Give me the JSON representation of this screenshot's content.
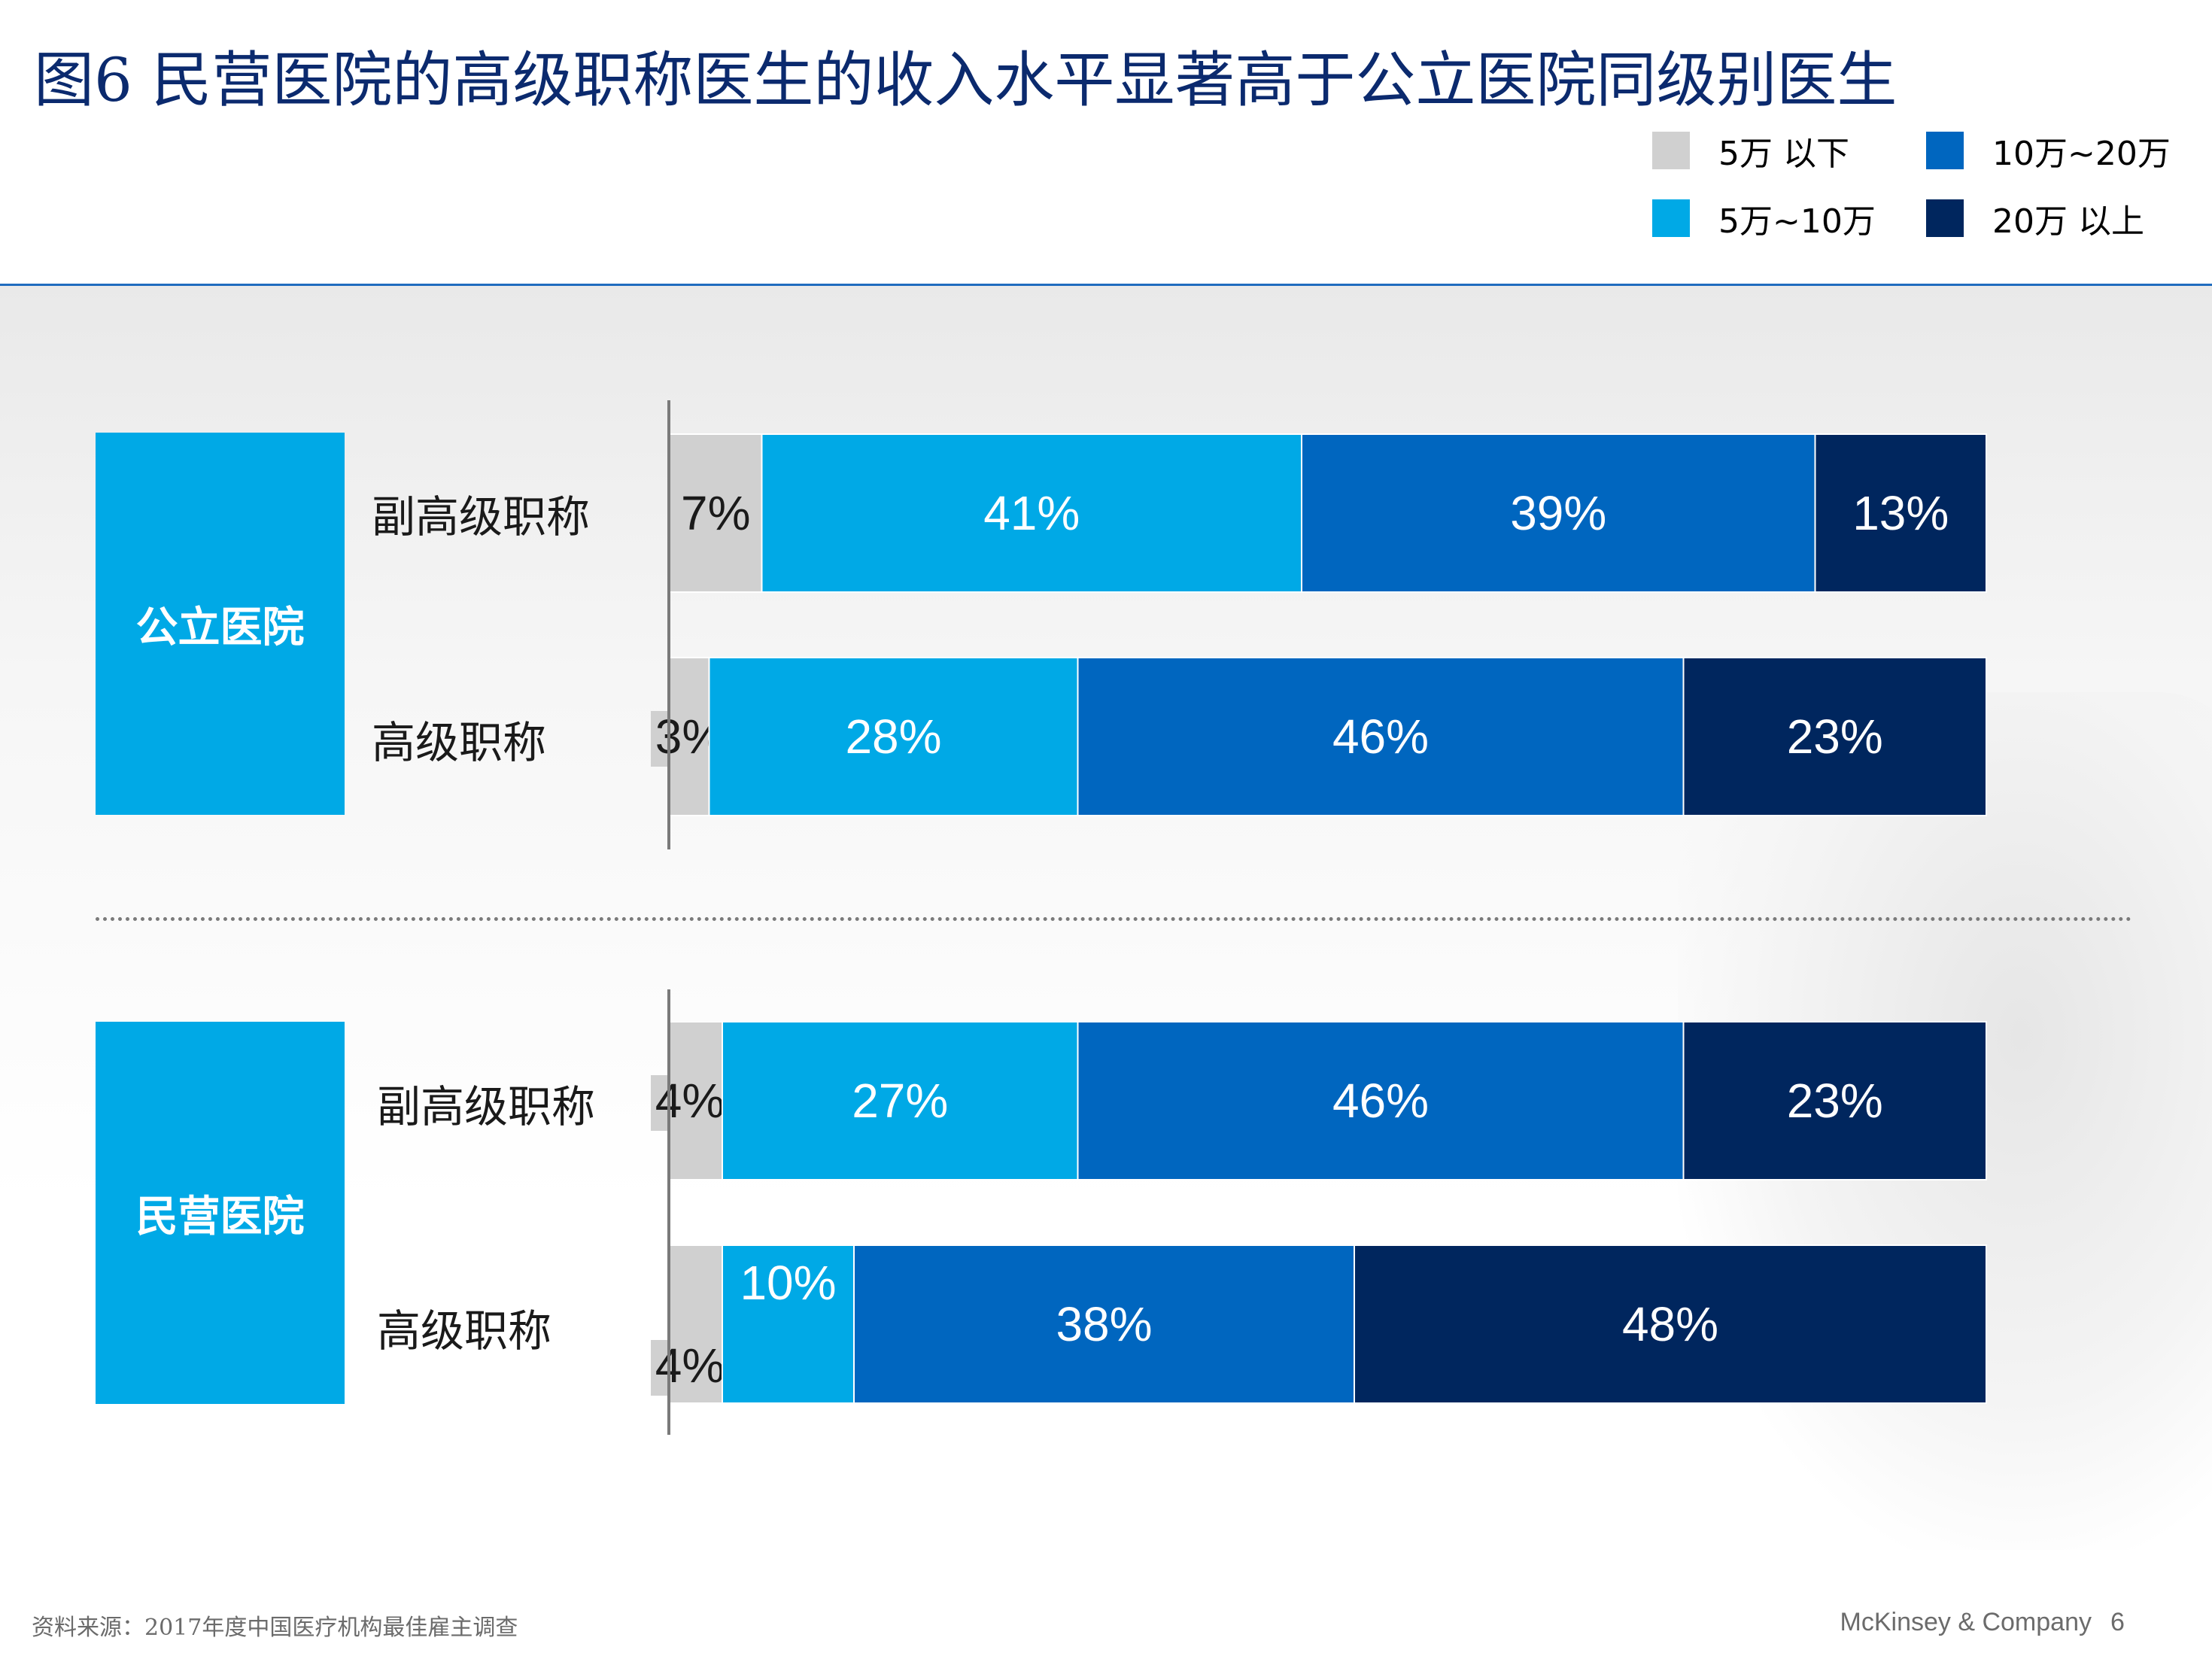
{
  "title": "图6 民营医院的高级职称医生的收入水平显著高于公立医院同级别医生",
  "legend": [
    {
      "label": "5万 以下",
      "color": "#d0d0d0"
    },
    {
      "label": "10万~20万",
      "color": "#0066bf"
    },
    {
      "label": "5万~10万",
      "color": "#00a9e6"
    },
    {
      "label": "20万 以上",
      "color": "#00265e"
    }
  ],
  "groups": [
    {
      "name": "公立医院",
      "rows": [
        "副高级职称",
        "高级职称"
      ]
    },
    {
      "name": "民营医院",
      "rows": [
        "副高级职称",
        "高级职称"
      ]
    }
  ],
  "chart_data": {
    "type": "bar",
    "orientation": "horizontal",
    "stacked": true,
    "normalized": "100%",
    "categories": [
      "公立医院 副高级职称",
      "公立医院 高级职称",
      "民营医院 副高级职称",
      "民营医院 高级职称"
    ],
    "series": [
      {
        "name": "5万 以下",
        "values": [
          7,
          3,
          4,
          4
        ],
        "color": "#d0d0d0"
      },
      {
        "name": "5万~10万",
        "values": [
          41,
          28,
          27,
          10
        ],
        "color": "#00a9e6"
      },
      {
        "name": "10万~20万",
        "values": [
          39,
          46,
          46,
          38
        ],
        "color": "#0066bf"
      },
      {
        "name": "20万 以上",
        "values": [
          13,
          23,
          23,
          48
        ],
        "color": "#00265e"
      }
    ],
    "value_labels": [
      [
        "7%",
        "41%",
        "39%",
        "13%"
      ],
      [
        "3%",
        "28%",
        "46%",
        "23%"
      ],
      [
        "4%",
        "27%",
        "46%",
        "23%"
      ],
      [
        "4%",
        "10%",
        "38%",
        "48%"
      ]
    ],
    "xlim": [
      0,
      100
    ],
    "grid": false,
    "legend_position": "top-right"
  },
  "footer": {
    "source": "资料来源：2017年度中国医疗机构最佳雇主调查",
    "brand": "McKinsey & Company",
    "page": "6"
  }
}
